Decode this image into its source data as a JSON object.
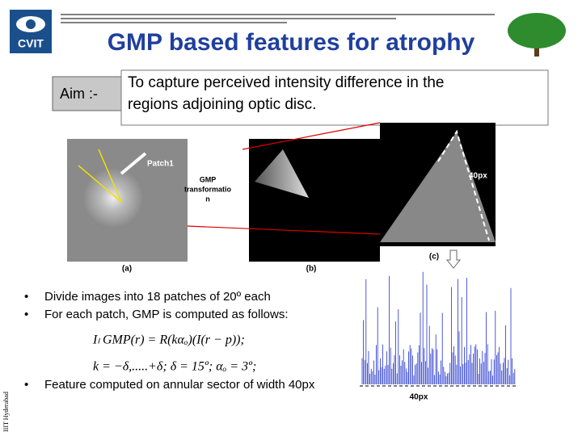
{
  "header": {
    "logo": "CVIT",
    "title": "GMP based features for atrophy"
  },
  "aim": {
    "label": "Aim :-",
    "text": [
      "To capture perceived intensity difference in the",
      "regions adjoining optic disc."
    ]
  },
  "figure": {
    "patch_label": "Patch1",
    "transform_label": [
      "GMP",
      "transformatio",
      "n"
    ],
    "width_label": "40px",
    "captions": [
      "(a)",
      "(b)",
      "(c)"
    ]
  },
  "bullets": [
    "Divide images into 18 patches of 20º each",
    "For each patch, GMP is computed as follows:",
    "Feature computed on annular sector of width 40px"
  ],
  "formulas": [
    "Iₗ GMP(r) = R(kαₒ)(I(r − p));",
    "k = −δ,.....+δ; δ = 15º; αₒ = 3º;"
  ],
  "plot_label": "40px",
  "side_label": "IIIT Hyderabad"
}
